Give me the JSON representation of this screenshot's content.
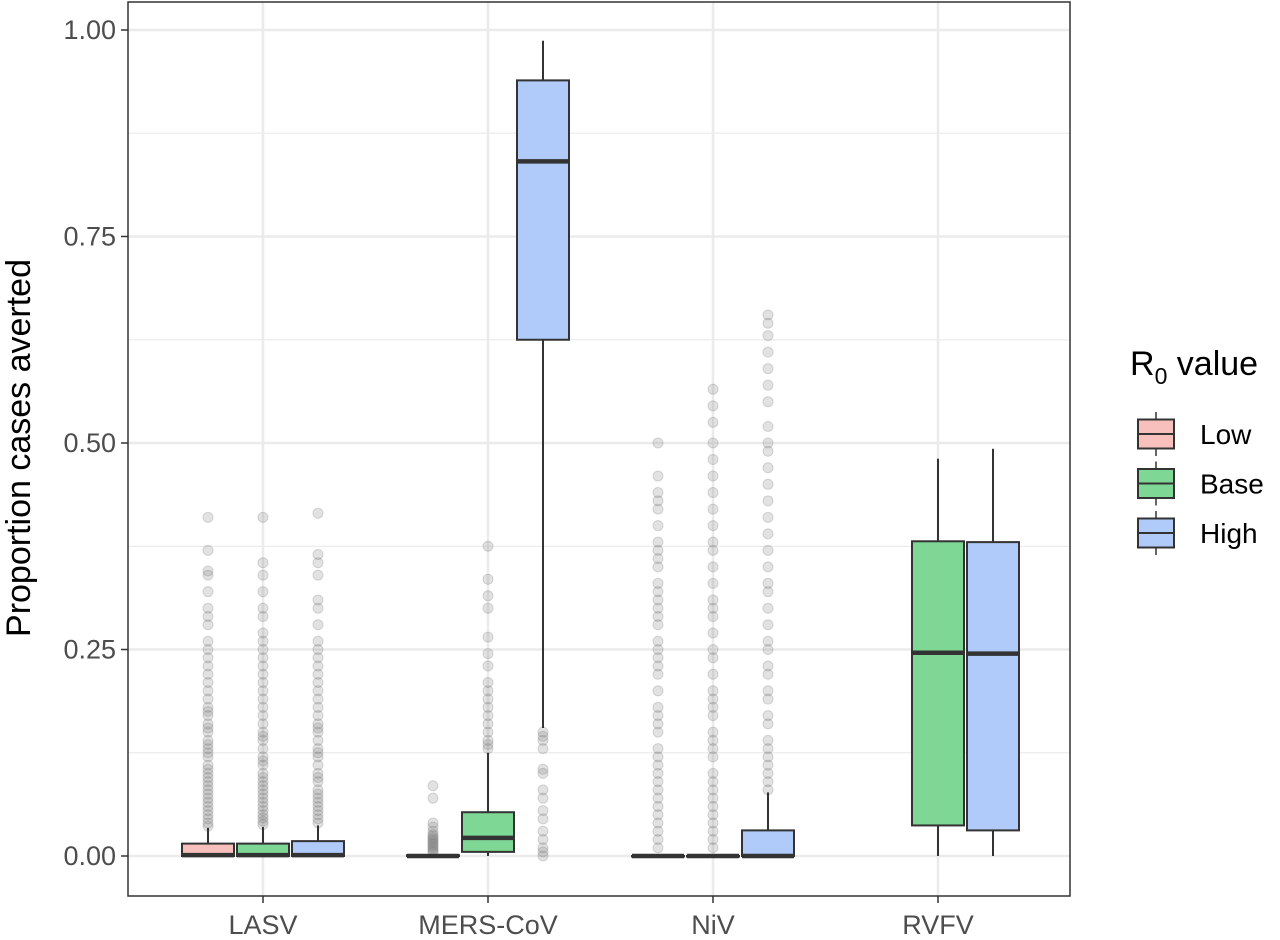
{
  "chart_data": {
    "type": "boxplot",
    "categories": [
      "LASV",
      "MERS-CoV",
      "NiV",
      "RVFV"
    ],
    "ylabel": "Proportion cases averted",
    "ylim": [
      -0.05,
      1.03
    ],
    "yticks": [
      0.0,
      0.25,
      0.5,
      0.75,
      1.0
    ],
    "ytick_labels": [
      "0.00",
      "0.25",
      "0.50",
      "0.75",
      "1.00"
    ],
    "grid": true,
    "legend": {
      "title_main": "R",
      "title_sub": "0",
      "title_rest": " value",
      "placement": "right",
      "entries": [
        "Low",
        "Base",
        "High"
      ]
    },
    "colors": {
      "Low": "#f8c0bc",
      "Base": "#7fd796",
      "High": "#b0cbf9"
    },
    "series": [
      {
        "name": "Low",
        "boxes": [
          {
            "category": "LASV",
            "min": 0.0,
            "q1": 0.0,
            "median": 0.001,
            "q3": 0.015,
            "max": 0.034,
            "outliers": [
              0.036,
              0.04,
              0.045,
              0.05,
              0.055,
              0.06,
              0.065,
              0.07,
              0.075,
              0.08,
              0.085,
              0.09,
              0.095,
              0.1,
              0.105,
              0.11,
              0.12,
              0.125,
              0.13,
              0.135,
              0.14,
              0.15,
              0.155,
              0.16,
              0.17,
              0.175,
              0.18,
              0.19,
              0.2,
              0.21,
              0.22,
              0.23,
              0.24,
              0.25,
              0.26,
              0.28,
              0.29,
              0.3,
              0.32,
              0.34,
              0.345,
              0.37,
              0.41
            ]
          },
          {
            "category": "MERS-CoV",
            "min": 0.0,
            "q1": 0.0,
            "median": 0.0,
            "q3": 0.001,
            "max": 0.002,
            "outliers": [
              0.004,
              0.006,
              0.008,
              0.01,
              0.012,
              0.014,
              0.016,
              0.018,
              0.02,
              0.022,
              0.024,
              0.026,
              0.03,
              0.035,
              0.04,
              0.07,
              0.085
            ]
          },
          {
            "category": "NiV",
            "min": 0.0,
            "q1": 0.0,
            "median": 0.0,
            "q3": 0.0,
            "max": 0.0,
            "outliers": [
              0.01,
              0.02,
              0.03,
              0.04,
              0.05,
              0.06,
              0.07,
              0.08,
              0.09,
              0.1,
              0.11,
              0.12,
              0.13,
              0.15,
              0.16,
              0.17,
              0.18,
              0.2,
              0.22,
              0.23,
              0.24,
              0.25,
              0.26,
              0.28,
              0.29,
              0.3,
              0.31,
              0.32,
              0.33,
              0.35,
              0.36,
              0.37,
              0.38,
              0.4,
              0.42,
              0.43,
              0.44,
              0.46,
              0.5
            ]
          }
        ]
      },
      {
        "name": "Base",
        "boxes": [
          {
            "category": "LASV",
            "min": 0.0,
            "q1": 0.0,
            "median": 0.001,
            "q3": 0.015,
            "max": 0.035,
            "outliers": [
              0.038,
              0.042,
              0.046,
              0.05,
              0.055,
              0.06,
              0.065,
              0.07,
              0.075,
              0.08,
              0.085,
              0.09,
              0.095,
              0.1,
              0.11,
              0.115,
              0.12,
              0.13,
              0.14,
              0.145,
              0.15,
              0.16,
              0.17,
              0.18,
              0.19,
              0.2,
              0.21,
              0.22,
              0.23,
              0.24,
              0.25,
              0.26,
              0.27,
              0.29,
              0.3,
              0.32,
              0.34,
              0.355,
              0.41
            ]
          },
          {
            "category": "MERS-CoV",
            "min": 0.0,
            "q1": 0.005,
            "median": 0.022,
            "q3": 0.053,
            "max": 0.125,
            "outliers": [
              0.13,
              0.135,
              0.14,
              0.15,
              0.16,
              0.17,
              0.18,
              0.19,
              0.2,
              0.21,
              0.23,
              0.245,
              0.265,
              0.3,
              0.315,
              0.335,
              0.375
            ]
          },
          {
            "category": "NiV",
            "min": 0.0,
            "q1": 0.0,
            "median": 0.0,
            "q3": 0.0,
            "max": 0.0,
            "outliers": [
              0.01,
              0.02,
              0.03,
              0.04,
              0.05,
              0.06,
              0.07,
              0.08,
              0.09,
              0.1,
              0.12,
              0.13,
              0.14,
              0.15,
              0.17,
              0.18,
              0.19,
              0.2,
              0.22,
              0.24,
              0.25,
              0.27,
              0.29,
              0.3,
              0.31,
              0.33,
              0.35,
              0.37,
              0.38,
              0.4,
              0.42,
              0.44,
              0.46,
              0.48,
              0.5,
              0.525,
              0.545,
              0.565
            ]
          },
          {
            "category": "RVFV",
            "min": 0.0,
            "q1": 0.037,
            "median": 0.246,
            "q3": 0.381,
            "max": 0.481,
            "outliers": []
          }
        ]
      },
      {
        "name": "High",
        "boxes": [
          {
            "category": "LASV",
            "min": 0.0,
            "q1": 0.0,
            "median": 0.001,
            "q3": 0.018,
            "max": 0.037,
            "outliers": [
              0.04,
              0.045,
              0.05,
              0.055,
              0.06,
              0.065,
              0.07,
              0.075,
              0.08,
              0.09,
              0.095,
              0.1,
              0.11,
              0.12,
              0.125,
              0.13,
              0.14,
              0.15,
              0.155,
              0.16,
              0.17,
              0.18,
              0.19,
              0.2,
              0.21,
              0.22,
              0.23,
              0.24,
              0.25,
              0.26,
              0.28,
              0.3,
              0.31,
              0.34,
              0.355,
              0.365,
              0.415
            ]
          },
          {
            "category": "MERS-CoV",
            "min": 0.155,
            "q1": 0.625,
            "median": 0.841,
            "q3": 0.939,
            "max": 0.987,
            "outliers": [
              0.0,
              0.005,
              0.01,
              0.02,
              0.03,
              0.045,
              0.055,
              0.07,
              0.08,
              0.1,
              0.105,
              0.13,
              0.14,
              0.145,
              0.15
            ]
          },
          {
            "category": "NiV",
            "min": 0.0,
            "q1": 0.0,
            "median": 0.0,
            "q3": 0.031,
            "max": 0.077,
            "outliers": [
              0.08,
              0.09,
              0.1,
              0.11,
              0.12,
              0.13,
              0.14,
              0.16,
              0.17,
              0.19,
              0.2,
              0.22,
              0.23,
              0.25,
              0.26,
              0.28,
              0.3,
              0.32,
              0.33,
              0.35,
              0.37,
              0.39,
              0.41,
              0.43,
              0.45,
              0.47,
              0.49,
              0.5,
              0.52,
              0.55,
              0.57,
              0.59,
              0.61,
              0.63,
              0.645,
              0.655
            ]
          },
          {
            "category": "RVFV",
            "min": 0.0,
            "q1": 0.031,
            "median": 0.245,
            "q3": 0.38,
            "max": 0.493,
            "outliers": []
          }
        ]
      }
    ]
  }
}
